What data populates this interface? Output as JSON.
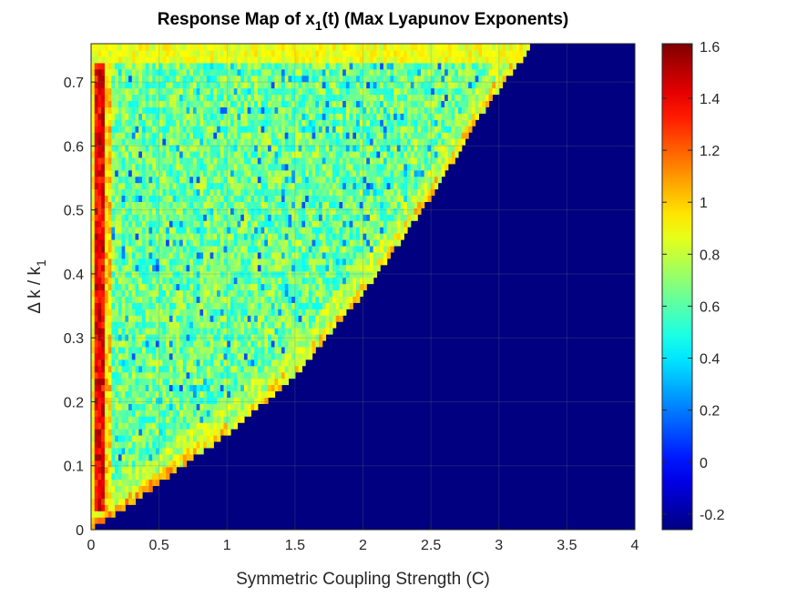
{
  "chart_data": {
    "type": "heatmap",
    "title": "Response Map of x",
    "title_subscript": "1",
    "title_tail": "(t) (Max Lyapunov Exponents)",
    "xlabel": "Symmetric Coupling Strength (C)",
    "ylabel_prefix": "Δ k / k",
    "ylabel_subscript": "1",
    "xlim": [
      0,
      4
    ],
    "ylim": [
      0,
      0.76
    ],
    "x_ticks": [
      0,
      0.5,
      1,
      1.5,
      2,
      2.5,
      3,
      3.5,
      4
    ],
    "x_tick_labels": [
      "0",
      "0.5",
      "1",
      "1.5",
      "2",
      "2.5",
      "3",
      "3.5",
      "4"
    ],
    "y_ticks": [
      0,
      0.1,
      0.2,
      0.3,
      0.4,
      0.5,
      0.6,
      0.7
    ],
    "y_tick_labels": [
      "0",
      "0.1",
      "0.2",
      "0.3",
      "0.4",
      "0.5",
      "0.6",
      "0.7"
    ],
    "grid": true,
    "colormap": "jet",
    "colorbar": {
      "clim": [
        -0.26,
        1.61
      ],
      "ticks": [
        -0.2,
        0,
        0.2,
        0.4,
        0.6,
        0.8,
        1,
        1.2,
        1.4,
        1.6
      ],
      "tick_labels": [
        "-0.2",
        "0",
        "0.2",
        "0.4",
        "0.6",
        "0.8",
        "1",
        "1.2",
        "1.4",
        "1.6"
      ]
    },
    "grid_resolution": {
      "x_cells": 160,
      "y_cells": 77
    },
    "regions": {
      "stable_value": -0.26,
      "boundary_curve": {
        "description": "chaotic region lies left of boundary; right is stable (~-0.26)",
        "points_dk_over_k1_vs_C": [
          [
            0,
            0.0
          ],
          [
            0.3,
            0.04
          ],
          [
            0.6,
            0.09
          ],
          [
            1.0,
            0.15
          ],
          [
            1.5,
            0.24
          ],
          [
            2.0,
            0.37
          ],
          [
            2.5,
            0.52
          ],
          [
            2.9,
            0.66
          ],
          [
            3.25,
            0.76
          ]
        ]
      },
      "chaotic_mean": 0.62,
      "edge_band_value": 0.85,
      "red_strip": {
        "C_range": [
          0.02,
          0.1
        ],
        "value": 1.4
      }
    }
  }
}
